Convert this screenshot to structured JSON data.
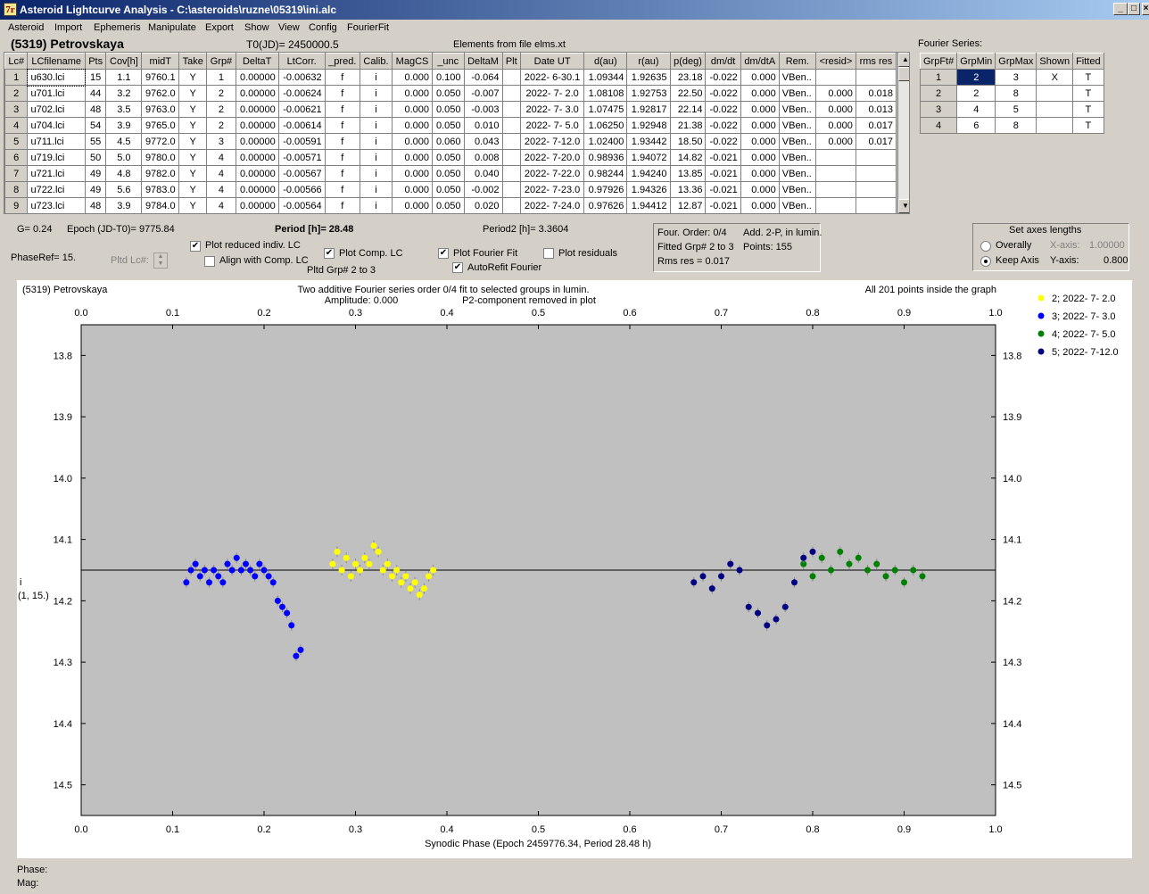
{
  "window": {
    "title": "Asteroid Lightcurve Analysis - C:\\asteroids\\ruzne\\05319\\ini.alc",
    "icon": "7r"
  },
  "menu": [
    "Asteroid",
    "Import",
    "Ephemeris",
    "Manipulate",
    "Export",
    "Show",
    "View",
    "Config",
    "FourierFit"
  ],
  "header": {
    "asteroid": "(5319) Petrovskaya",
    "t0": "T0(JD)= 2450000.5",
    "elements": "Elements from file elms.xt",
    "fourier_label": "Fourier Series:"
  },
  "lc_table": {
    "columns": [
      "Lc#",
      "LCfilename",
      "Pts",
      "Cov[h]",
      "midT",
      "Take",
      "Grp#",
      "DeltaT",
      "LtCorr.",
      "_pred.",
      "Calib.",
      "MagCS",
      "_unc",
      "DeltaM",
      "Plt",
      "Date UT",
      "d(au)",
      "r(au)",
      "p(deg)",
      "dm/dt",
      "dm/dtA",
      "Rem.",
      "<resid>",
      "rms res"
    ],
    "rows": [
      [
        "1",
        "u630.lci",
        "15",
        "1.1",
        "9760.1",
        "Y",
        "1",
        "0.00000",
        "-0.00632",
        "f",
        "i",
        "0.000",
        "0.100",
        "-0.064",
        "",
        "2022- 6-30.1",
        "1.09344",
        "1.92635",
        "23.18",
        "-0.022",
        "0.000",
        "VBen..",
        "",
        ""
      ],
      [
        "2",
        "u701.lci",
        "44",
        "3.2",
        "9762.0",
        "Y",
        "2",
        "0.00000",
        "-0.00624",
        "f",
        "i",
        "0.000",
        "0.050",
        "-0.007",
        "",
        "2022- 7- 2.0",
        "1.08108",
        "1.92753",
        "22.50",
        "-0.022",
        "0.000",
        "VBen..",
        "0.000",
        "0.018"
      ],
      [
        "3",
        "u702.lci",
        "48",
        "3.5",
        "9763.0",
        "Y",
        "2",
        "0.00000",
        "-0.00621",
        "f",
        "i",
        "0.000",
        "0.050",
        "-0.003",
        "",
        "2022- 7- 3.0",
        "1.07475",
        "1.92817",
        "22.14",
        "-0.022",
        "0.000",
        "VBen..",
        "0.000",
        "0.013"
      ],
      [
        "4",
        "u704.lci",
        "54",
        "3.9",
        "9765.0",
        "Y",
        "2",
        "0.00000",
        "-0.00614",
        "f",
        "i",
        "0.000",
        "0.050",
        "0.010",
        "",
        "2022- 7- 5.0",
        "1.06250",
        "1.92948",
        "21.38",
        "-0.022",
        "0.000",
        "VBen..",
        "0.000",
        "0.017"
      ],
      [
        "5",
        "u711.lci",
        "55",
        "4.5",
        "9772.0",
        "Y",
        "3",
        "0.00000",
        "-0.00591",
        "f",
        "i",
        "0.000",
        "0.060",
        "0.043",
        "",
        "2022- 7-12.0",
        "1.02400",
        "1.93442",
        "18.50",
        "-0.022",
        "0.000",
        "VBen..",
        "0.000",
        "0.017"
      ],
      [
        "6",
        "u719.lci",
        "50",
        "5.0",
        "9780.0",
        "Y",
        "4",
        "0.00000",
        "-0.00571",
        "f",
        "i",
        "0.000",
        "0.050",
        "0.008",
        "",
        "2022- 7-20.0",
        "0.98936",
        "1.94072",
        "14.82",
        "-0.021",
        "0.000",
        "VBen..",
        "",
        ""
      ],
      [
        "7",
        "u721.lci",
        "49",
        "4.8",
        "9782.0",
        "Y",
        "4",
        "0.00000",
        "-0.00567",
        "f",
        "i",
        "0.000",
        "0.050",
        "0.040",
        "",
        "2022- 7-22.0",
        "0.98244",
        "1.94240",
        "13.85",
        "-0.021",
        "0.000",
        "VBen..",
        "",
        ""
      ],
      [
        "8",
        "u722.lci",
        "49",
        "5.6",
        "9783.0",
        "Y",
        "4",
        "0.00000",
        "-0.00566",
        "f",
        "i",
        "0.000",
        "0.050",
        "-0.002",
        "",
        "2022- 7-23.0",
        "0.97926",
        "1.94326",
        "13.36",
        "-0.021",
        "0.000",
        "VBen..",
        "",
        ""
      ],
      [
        "9",
        "u723.lci",
        "48",
        "3.9",
        "9784.0",
        "Y",
        "4",
        "0.00000",
        "-0.00564",
        "f",
        "i",
        "0.000",
        "0.050",
        "0.020",
        "",
        "2022- 7-24.0",
        "0.97626",
        "1.94412",
        "12.87",
        "-0.021",
        "0.000",
        "VBen..",
        "",
        ""
      ]
    ]
  },
  "fourier_table": {
    "columns": [
      "GrpFt#",
      "GrpMin",
      "GrpMax",
      "Shown",
      "Fitted"
    ],
    "rows": [
      [
        "1",
        "2",
        "3",
        "X",
        "T"
      ],
      [
        "2",
        "2",
        "8",
        "",
        "T"
      ],
      [
        "3",
        "4",
        "5",
        "",
        "T"
      ],
      [
        "4",
        "6",
        "8",
        "",
        "T"
      ]
    ]
  },
  "info": {
    "g": "G= 0.24",
    "epoch": "Epoch (JD-T0)= 9775.84",
    "period": "Period [h]= 28.48",
    "period2": "Period2 [h]= 3.3604",
    "phaseref": "PhaseRef= 15.",
    "pltd_lc": "Pltd Lc#:",
    "pltd_grp": "Pltd Grp#  2   to   3"
  },
  "checkboxes": {
    "reduced": "Plot reduced indiv. LC",
    "align": "Align with Comp. LC",
    "comp": "Plot Comp. LC",
    "fourier": "Plot Fourier Fit",
    "autorefit": "AutoRefit Fourier",
    "residuals": "Plot residuals"
  },
  "checkbox_state": {
    "reduced": true,
    "align": false,
    "comp": true,
    "fourier": true,
    "autorefit": true,
    "residuals": false
  },
  "fourier_box": {
    "order": "Four. Order:  0/4",
    "add": "Add. 2-P, in lumin.",
    "fitted": "Fitted Grp# 2 to 3",
    "points": "Points: 155",
    "rms": "Rms res     = 0.017"
  },
  "axes_box": {
    "title": "Set axes lengths",
    "overally": "Overally",
    "keep": "Keep Axis",
    "xlabel": "X-axis:",
    "xval": "1.00000",
    "ylabel": "Y-axis:",
    "yval": "0.800"
  },
  "plot": {
    "name": "(5319) Petrovskaya",
    "title1": "Two additive Fourier series order 0/4 fit to selected groups in lumin.",
    "title2a": "Amplitude: 0.000",
    "title2b": "P2-component removed in plot",
    "inside": "All 201 points inside the graph",
    "ylabel1": "i",
    "ylabel2": "(1, 15.)",
    "xlabel": "Synodic Phase (Epoch 2459776.34, Period 28.48 h)"
  },
  "status": {
    "phase": "Phase:",
    "mag": "Mag:"
  },
  "chart_data": {
    "type": "scatter",
    "title": "Two additive Fourier series order 0/4 fit to selected groups in lumin.",
    "xlabel": "Synodic Phase (Epoch 2459776.34, Period 28.48 h)",
    "ylabel": "i",
    "xlim": [
      0,
      1
    ],
    "ylim": [
      14.55,
      13.75
    ],
    "inverted_y": true,
    "xticks": [
      "0.0",
      "0.1",
      "0.2",
      "0.3",
      "0.4",
      "0.5",
      "0.6",
      "0.7",
      "0.8",
      "0.9",
      "1.0"
    ],
    "yticks": [
      "13.8",
      "13.9",
      "14.0",
      "14.1",
      "14.2",
      "14.3",
      "14.4",
      "14.5"
    ],
    "fit_line": 14.15,
    "legend_position": "top-right",
    "series": [
      {
        "name": "2; 2022- 7- 2.0",
        "color": "#ffff00",
        "points": [
          [
            0.275,
            14.14
          ],
          [
            0.28,
            14.12
          ],
          [
            0.285,
            14.15
          ],
          [
            0.29,
            14.13
          ],
          [
            0.295,
            14.16
          ],
          [
            0.3,
            14.14
          ],
          [
            0.305,
            14.15
          ],
          [
            0.31,
            14.13
          ],
          [
            0.315,
            14.14
          ],
          [
            0.32,
            14.11
          ],
          [
            0.325,
            14.12
          ],
          [
            0.33,
            14.15
          ],
          [
            0.335,
            14.14
          ],
          [
            0.34,
            14.16
          ],
          [
            0.345,
            14.15
          ],
          [
            0.35,
            14.17
          ],
          [
            0.355,
            14.16
          ],
          [
            0.36,
            14.18
          ],
          [
            0.365,
            14.17
          ],
          [
            0.37,
            14.19
          ],
          [
            0.375,
            14.18
          ],
          [
            0.38,
            14.16
          ],
          [
            0.385,
            14.15
          ]
        ]
      },
      {
        "name": "3; 2022- 7- 3.0",
        "color": "#0000ff",
        "points": [
          [
            0.115,
            14.17
          ],
          [
            0.12,
            14.15
          ],
          [
            0.125,
            14.14
          ],
          [
            0.13,
            14.16
          ],
          [
            0.135,
            14.15
          ],
          [
            0.14,
            14.17
          ],
          [
            0.145,
            14.15
          ],
          [
            0.15,
            14.16
          ],
          [
            0.155,
            14.17
          ],
          [
            0.16,
            14.14
          ],
          [
            0.165,
            14.15
          ],
          [
            0.17,
            14.13
          ],
          [
            0.175,
            14.15
          ],
          [
            0.18,
            14.14
          ],
          [
            0.185,
            14.15
          ],
          [
            0.19,
            14.16
          ],
          [
            0.195,
            14.14
          ],
          [
            0.2,
            14.15
          ],
          [
            0.205,
            14.16
          ],
          [
            0.21,
            14.17
          ],
          [
            0.215,
            14.2
          ],
          [
            0.22,
            14.21
          ],
          [
            0.225,
            14.22
          ],
          [
            0.23,
            14.24
          ],
          [
            0.235,
            14.29
          ],
          [
            0.24,
            14.28
          ]
        ]
      },
      {
        "name": "4; 2022- 7- 5.0",
        "color": "#008000",
        "points": [
          [
            0.79,
            14.14
          ],
          [
            0.8,
            14.16
          ],
          [
            0.81,
            14.13
          ],
          [
            0.82,
            14.15
          ],
          [
            0.83,
            14.12
          ],
          [
            0.84,
            14.14
          ],
          [
            0.85,
            14.13
          ],
          [
            0.86,
            14.15
          ],
          [
            0.87,
            14.14
          ],
          [
            0.88,
            14.16
          ],
          [
            0.89,
            14.15
          ],
          [
            0.9,
            14.17
          ],
          [
            0.91,
            14.15
          ],
          [
            0.92,
            14.16
          ]
        ]
      },
      {
        "name": "5; 2022- 7-12.0",
        "color": "#000080",
        "points": [
          [
            0.67,
            14.17
          ],
          [
            0.68,
            14.16
          ],
          [
            0.69,
            14.18
          ],
          [
            0.7,
            14.16
          ],
          [
            0.71,
            14.14
          ],
          [
            0.72,
            14.15
          ],
          [
            0.73,
            14.21
          ],
          [
            0.74,
            14.22
          ],
          [
            0.75,
            14.24
          ],
          [
            0.76,
            14.23
          ],
          [
            0.77,
            14.21
          ],
          [
            0.78,
            14.17
          ],
          [
            0.79,
            14.13
          ],
          [
            0.8,
            14.12
          ]
        ]
      }
    ]
  }
}
